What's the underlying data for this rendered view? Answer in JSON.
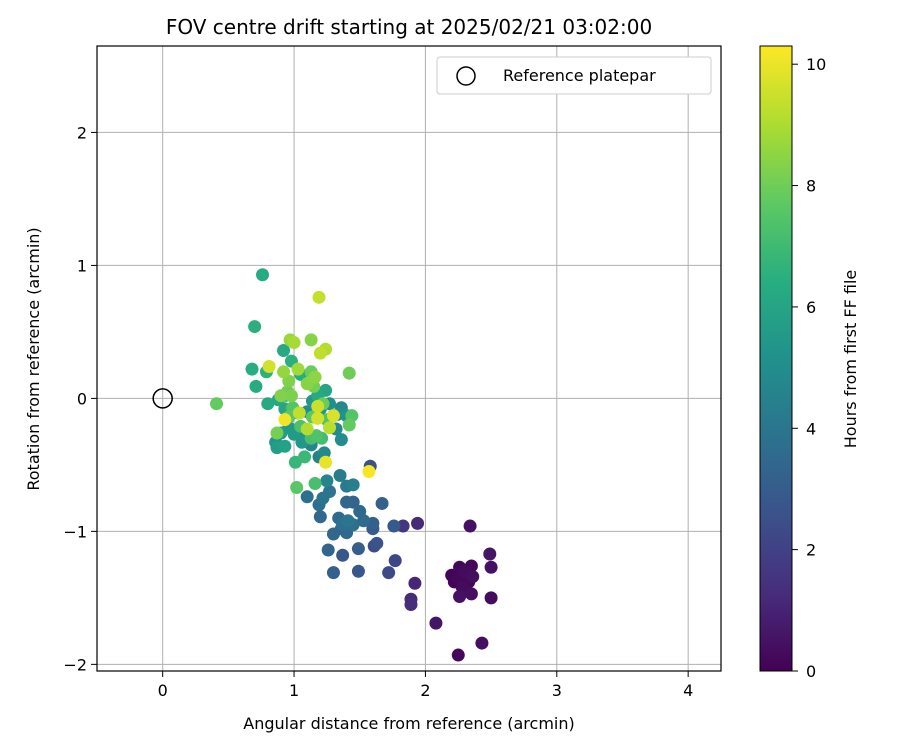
{
  "chart_data": {
    "type": "scatter",
    "title": "FOV centre drift starting at 2025/02/21 03:02:00",
    "xlabel": "Angular distance from reference (arcmin)",
    "ylabel": "Rotation from reference (arcmin)",
    "xlim": [
      -0.5,
      4.25
    ],
    "ylim": [
      -2.05,
      2.65
    ],
    "xticks": [
      0,
      1,
      2,
      3,
      4
    ],
    "xtick_labels": [
      "0",
      "1",
      "2",
      "3",
      "4"
    ],
    "yticks": [
      -2,
      -1,
      0,
      1,
      2
    ],
    "ytick_labels": [
      "−2",
      "−1",
      "0",
      "1",
      "2"
    ],
    "grid": true,
    "legend": {
      "position": "top-right",
      "entries": [
        "Reference platepar"
      ]
    },
    "reference_point": {
      "x": 0,
      "y": 0,
      "label": "Reference platepar"
    },
    "colorbar": {
      "label": "Hours from first FF file",
      "colormap": "viridis",
      "range": [
        0,
        10.3
      ],
      "ticks": [
        0,
        2,
        4,
        6,
        8,
        10
      ],
      "tick_labels": [
        "0",
        "2",
        "4",
        "6",
        "8",
        "10"
      ]
    },
    "series": [
      {
        "color_by": "hours",
        "points": [
          {
            "x": 2.25,
            "y": -1.93,
            "h": 0.2
          },
          {
            "x": 2.43,
            "y": -1.84,
            "h": 0.4
          },
          {
            "x": 2.08,
            "y": -1.69,
            "h": 0.6
          },
          {
            "x": 2.5,
            "y": -1.5,
            "h": 0.3
          },
          {
            "x": 2.26,
            "y": -1.49,
            "h": 0.5
          },
          {
            "x": 2.35,
            "y": -1.47,
            "h": 0.4
          },
          {
            "x": 2.22,
            "y": -1.38,
            "h": 0.1
          },
          {
            "x": 2.28,
            "y": -1.42,
            "h": 0.3
          },
          {
            "x": 2.33,
            "y": -1.38,
            "h": 0.2
          },
          {
            "x": 2.2,
            "y": -1.33,
            "h": 0.1
          },
          {
            "x": 2.26,
            "y": -1.27,
            "h": 0.2
          },
          {
            "x": 2.3,
            "y": -1.3,
            "h": 0.3
          },
          {
            "x": 2.35,
            "y": -1.26,
            "h": 0.2
          },
          {
            "x": 2.36,
            "y": -1.34,
            "h": 0.4
          },
          {
            "x": 2.5,
            "y": -1.27,
            "h": 0.5
          },
          {
            "x": 2.49,
            "y": -1.17,
            "h": 0.6
          },
          {
            "x": 2.34,
            "y": -0.96,
            "h": 0.5
          },
          {
            "x": 2.25,
            "y": -1.36,
            "h": 0.2
          },
          {
            "x": 1.89,
            "y": -1.55,
            "h": 1.3
          },
          {
            "x": 1.89,
            "y": -1.51,
            "h": 1.2
          },
          {
            "x": 1.92,
            "y": -1.39,
            "h": 1.1
          },
          {
            "x": 1.94,
            "y": -0.94,
            "h": 1.2
          },
          {
            "x": 1.83,
            "y": -0.96,
            "h": 1.6
          },
          {
            "x": 1.77,
            "y": -1.22,
            "h": 2.2
          },
          {
            "x": 1.72,
            "y": -1.31,
            "h": 2.3
          },
          {
            "x": 1.61,
            "y": -1.11,
            "h": 2.4
          },
          {
            "x": 1.63,
            "y": -1.09,
            "h": 2.6
          },
          {
            "x": 1.58,
            "y": -0.51,
            "h": 2.5
          },
          {
            "x": 1.49,
            "y": -1.3,
            "h": 2.8
          },
          {
            "x": 1.49,
            "y": -1.13,
            "h": 3.0
          },
          {
            "x": 1.37,
            "y": -1.18,
            "h": 2.8
          },
          {
            "x": 1.3,
            "y": -1.31,
            "h": 3.1
          },
          {
            "x": 1.26,
            "y": -1.14,
            "h": 3.3
          },
          {
            "x": 1.6,
            "y": -0.98,
            "h": 2.9
          },
          {
            "x": 1.6,
            "y": -0.94,
            "h": 3.1
          },
          {
            "x": 1.76,
            "y": -0.96,
            "h": 2.9
          },
          {
            "x": 1.67,
            "y": -0.79,
            "h": 3.2
          },
          {
            "x": 1.45,
            "y": -0.78,
            "h": 3.3
          },
          {
            "x": 1.4,
            "y": -0.78,
            "h": 3.4
          },
          {
            "x": 1.5,
            "y": -0.85,
            "h": 3.5
          },
          {
            "x": 1.53,
            "y": -0.92,
            "h": 3.6
          },
          {
            "x": 1.45,
            "y": -0.95,
            "h": 3.8
          },
          {
            "x": 1.37,
            "y": -0.95,
            "h": 3.7
          },
          {
            "x": 1.34,
            "y": -0.9,
            "h": 3.6
          },
          {
            "x": 1.3,
            "y": -1.02,
            "h": 3.4
          },
          {
            "x": 1.4,
            "y": -1.01,
            "h": 3.5
          },
          {
            "x": 1.36,
            "y": -0.98,
            "h": 3.3
          },
          {
            "x": 1.41,
            "y": -0.92,
            "h": 4.0
          },
          {
            "x": 1.2,
            "y": -0.89,
            "h": 3.5
          },
          {
            "x": 1.19,
            "y": -0.8,
            "h": 3.7
          },
          {
            "x": 1.22,
            "y": -0.75,
            "h": 3.9
          },
          {
            "x": 1.1,
            "y": -0.74,
            "h": 3.8
          },
          {
            "x": 1.27,
            "y": -0.7,
            "h": 4.0
          },
          {
            "x": 1.4,
            "y": -0.66,
            "h": 4.2
          },
          {
            "x": 1.45,
            "y": -0.65,
            "h": 4.4
          },
          {
            "x": 1.35,
            "y": -0.58,
            "h": 4.3
          },
          {
            "x": 1.25,
            "y": -0.62,
            "h": 4.6
          },
          {
            "x": 1.19,
            "y": -0.44,
            "h": 4.5
          },
          {
            "x": 1.13,
            "y": -0.35,
            "h": 4.7
          },
          {
            "x": 1.23,
            "y": -0.41,
            "h": 4.8
          },
          {
            "x": 1.36,
            "y": -0.31,
            "h": 5.0
          },
          {
            "x": 1.32,
            "y": -0.23,
            "h": 4.9
          },
          {
            "x": 1.3,
            "y": -0.13,
            "h": 4.6
          },
          {
            "x": 1.36,
            "y": -0.07,
            "h": 4.8
          },
          {
            "x": 1.33,
            "y": -0.12,
            "h": 5.0
          },
          {
            "x": 1.4,
            "y": -0.13,
            "h": 5.2
          },
          {
            "x": 1.27,
            "y": -0.04,
            "h": 5.1
          },
          {
            "x": 1.2,
            "y": -0.08,
            "h": 5.3
          },
          {
            "x": 1.14,
            "y": -0.02,
            "h": 5.4
          },
          {
            "x": 1.1,
            "y": -0.1,
            "h": 5.0
          },
          {
            "x": 1.08,
            "y": -0.25,
            "h": 5.2
          },
          {
            "x": 1.06,
            "y": -0.33,
            "h": 5.4
          },
          {
            "x": 0.96,
            "y": -0.22,
            "h": 5.5
          },
          {
            "x": 0.9,
            "y": -0.26,
            "h": 5.6
          },
          {
            "x": 0.86,
            "y": -0.33,
            "h": 5.3
          },
          {
            "x": 0.87,
            "y": -0.37,
            "h": 5.7
          },
          {
            "x": 0.93,
            "y": -0.36,
            "h": 5.9
          },
          {
            "x": 1.0,
            "y": -0.27,
            "h": 5.6
          },
          {
            "x": 1.03,
            "y": -0.11,
            "h": 5.8
          },
          {
            "x": 0.93,
            "y": -0.08,
            "h": 6.0
          },
          {
            "x": 0.8,
            "y": -0.04,
            "h": 6.2
          },
          {
            "x": 0.88,
            "y": -0.01,
            "h": 6.1
          },
          {
            "x": 0.98,
            "y": -0.08,
            "h": 6.3
          },
          {
            "x": 1.24,
            "y": 0.06,
            "h": 6.0
          },
          {
            "x": 1.18,
            "y": 0.02,
            "h": 6.2
          },
          {
            "x": 0.71,
            "y": 0.09,
            "h": 6.3
          },
          {
            "x": 0.68,
            "y": 0.22,
            "h": 6.4
          },
          {
            "x": 0.79,
            "y": 0.2,
            "h": 6.6
          },
          {
            "x": 0.92,
            "y": 0.36,
            "h": 6.2
          },
          {
            "x": 0.98,
            "y": 0.28,
            "h": 6.5
          },
          {
            "x": 1.05,
            "y": 0.18,
            "h": 6.4
          },
          {
            "x": 0.7,
            "y": 0.54,
            "h": 6.5
          },
          {
            "x": 0.76,
            "y": 0.93,
            "h": 6.3
          },
          {
            "x": 1.01,
            "y": -0.48,
            "h": 6.8
          },
          {
            "x": 1.02,
            "y": -0.67,
            "h": 7.6
          },
          {
            "x": 1.16,
            "y": -0.64,
            "h": 7.2
          },
          {
            "x": 1.08,
            "y": -0.44,
            "h": 6.9
          },
          {
            "x": 1.13,
            "y": -0.3,
            "h": 7.2
          },
          {
            "x": 1.17,
            "y": -0.28,
            "h": 7.4
          },
          {
            "x": 1.21,
            "y": -0.3,
            "h": 7.1
          },
          {
            "x": 1.05,
            "y": -0.21,
            "h": 7.3
          },
          {
            "x": 0.96,
            "y": -0.14,
            "h": 7.6
          },
          {
            "x": 0.99,
            "y": -0.07,
            "h": 7.5
          },
          {
            "x": 1.14,
            "y": -0.14,
            "h": 7.7
          },
          {
            "x": 1.25,
            "y": -0.16,
            "h": 7.4
          },
          {
            "x": 1.42,
            "y": -0.2,
            "h": 7.8
          },
          {
            "x": 1.44,
            "y": -0.13,
            "h": 7.5
          },
          {
            "x": 1.22,
            "y": -0.04,
            "h": 7.9
          },
          {
            "x": 0.93,
            "y": 0.02,
            "h": 7.2
          },
          {
            "x": 0.41,
            "y": -0.04,
            "h": 7.8
          },
          {
            "x": 0.87,
            "y": -0.26,
            "h": 8.1
          },
          {
            "x": 0.9,
            "y": 0.02,
            "h": 8.3
          },
          {
            "x": 0.95,
            "y": 0.05,
            "h": 8.0
          },
          {
            "x": 0.98,
            "y": 0.02,
            "h": 8.2
          },
          {
            "x": 1.1,
            "y": 0.11,
            "h": 8.4
          },
          {
            "x": 1.15,
            "y": 0.09,
            "h": 8.1
          },
          {
            "x": 1.16,
            "y": 0.16,
            "h": 8.5
          },
          {
            "x": 1.13,
            "y": 0.2,
            "h": 7.9
          },
          {
            "x": 1.42,
            "y": 0.19,
            "h": 8.0
          },
          {
            "x": 0.92,
            "y": 0.2,
            "h": 8.6
          },
          {
            "x": 0.96,
            "y": 0.13,
            "h": 8.3
          },
          {
            "x": 1.03,
            "y": 0.22,
            "h": 8.8
          },
          {
            "x": 1.13,
            "y": 0.44,
            "h": 8.4
          },
          {
            "x": 0.97,
            "y": 0.44,
            "h": 8.7
          },
          {
            "x": 1.0,
            "y": 0.42,
            "h": 8.9
          },
          {
            "x": 1.24,
            "y": 0.37,
            "h": 9.1
          },
          {
            "x": 1.2,
            "y": 0.34,
            "h": 9.3
          },
          {
            "x": 1.19,
            "y": 0.76,
            "h": 9.4
          },
          {
            "x": 0.81,
            "y": 0.24,
            "h": 9.6
          },
          {
            "x": 1.04,
            "y": -0.11,
            "h": 9.3
          },
          {
            "x": 1.18,
            "y": -0.06,
            "h": 9.5
          },
          {
            "x": 1.18,
            "y": -0.15,
            "h": 9.6
          },
          {
            "x": 1.3,
            "y": -0.13,
            "h": 9.7
          },
          {
            "x": 1.27,
            "y": -0.22,
            "h": 9.2
          },
          {
            "x": 1.1,
            "y": -0.23,
            "h": 9.1
          },
          {
            "x": 1.24,
            "y": -0.48,
            "h": 10.0
          },
          {
            "x": 1.57,
            "y": -0.55,
            "h": 10.2
          },
          {
            "x": 0.93,
            "y": -0.16,
            "h": 10.1
          }
        ]
      }
    ]
  }
}
